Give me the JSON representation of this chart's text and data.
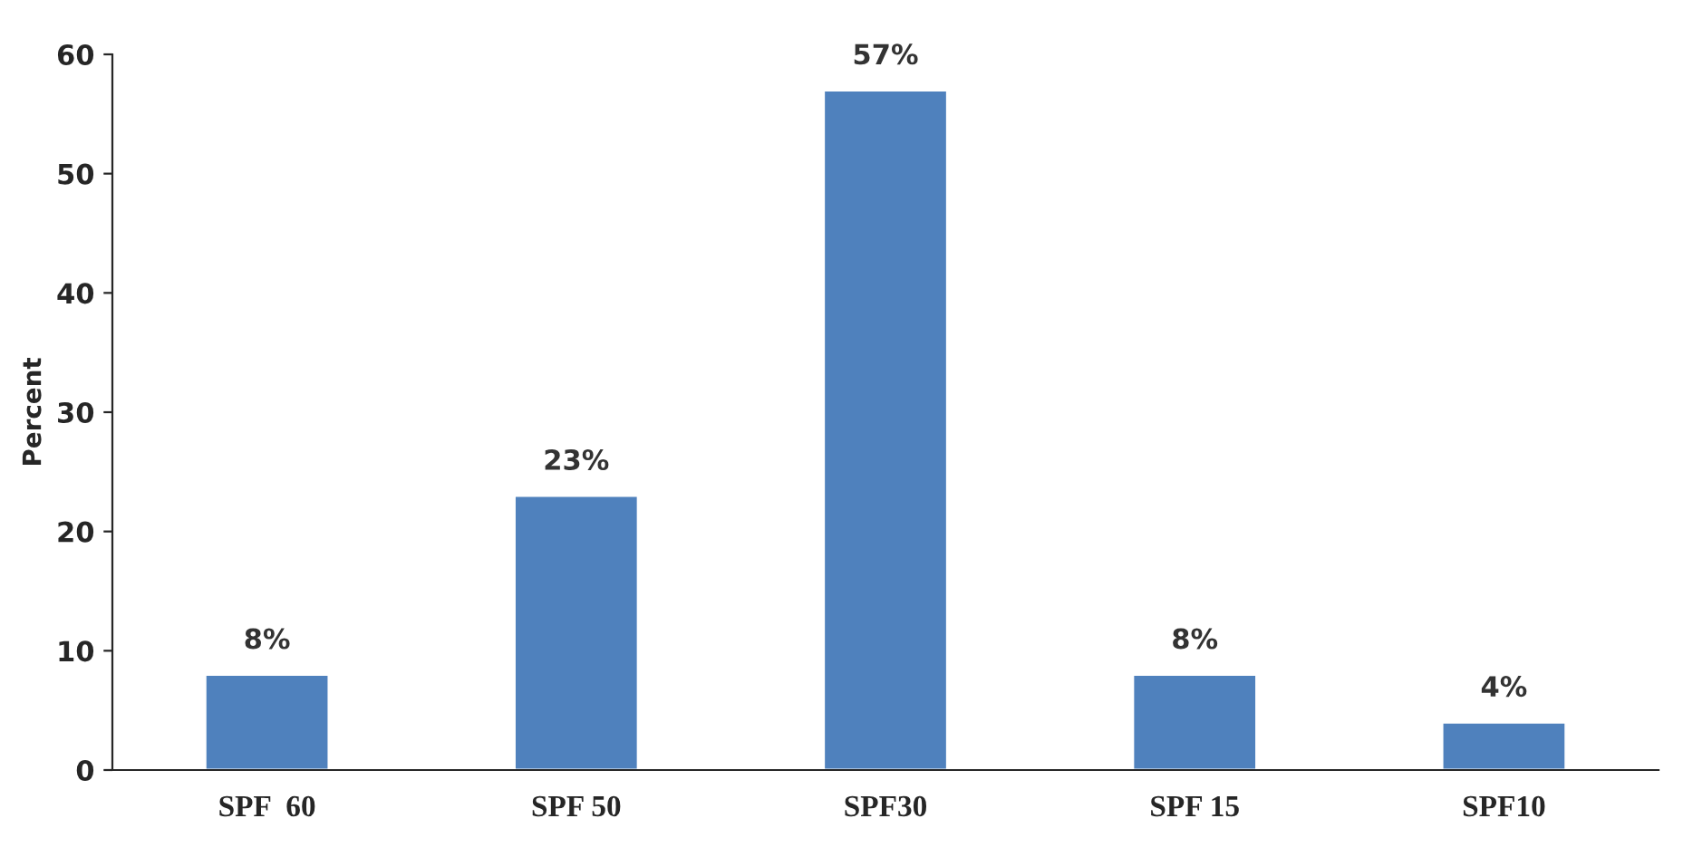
{
  "chart_data": {
    "type": "bar",
    "ylabel": "Percent",
    "categories": [
      "SPF  60",
      "SPF 50",
      "SPF30",
      "SPF 15",
      "SPF10"
    ],
    "values": [
      8,
      23,
      57,
      8,
      4
    ],
    "value_labels": [
      "8%",
      "23%",
      "57%",
      "8%",
      "4%"
    ],
    "color": "#4f81bd",
    "ylim": [
      0,
      60
    ],
    "yticks": [
      0,
      10,
      20,
      30,
      40,
      50,
      60
    ],
    "grid": false
  }
}
